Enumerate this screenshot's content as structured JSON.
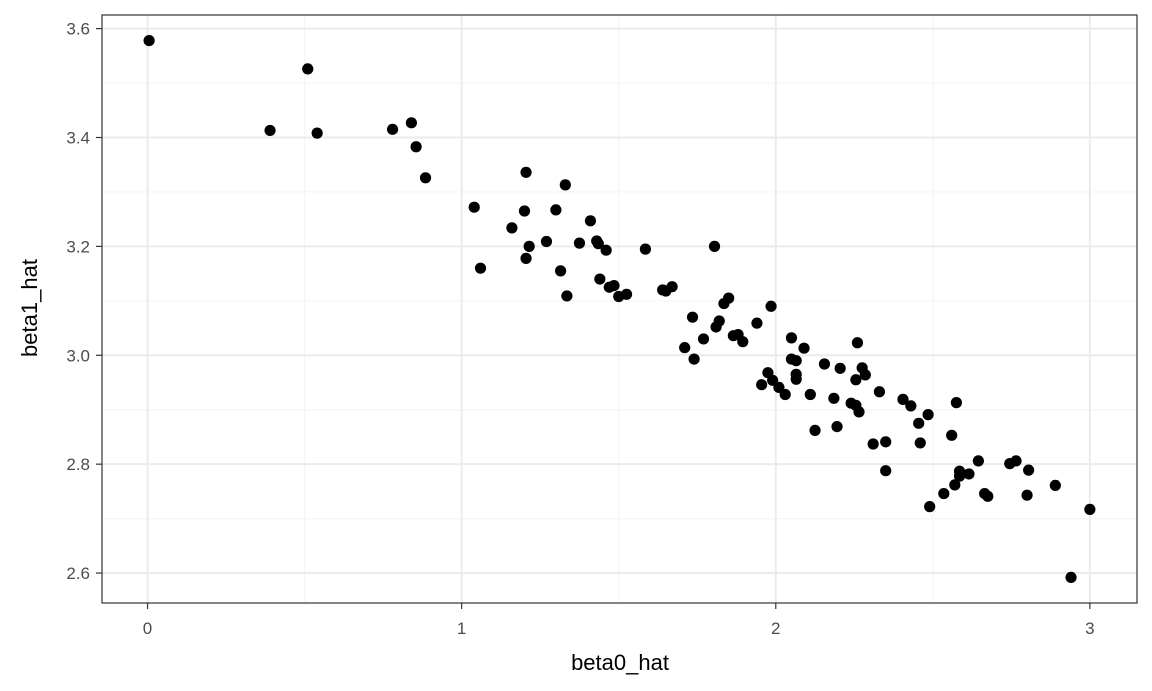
{
  "chart_data": {
    "type": "scatter",
    "xlabel": "beta0_hat",
    "ylabel": "beta1_hat",
    "xlim": [
      -0.145,
      3.15
    ],
    "ylim": [
      2.545,
      3.625
    ],
    "x_ticks": [
      0,
      1,
      2,
      3
    ],
    "x_tick_labels": [
      "0",
      "1",
      "2",
      "3"
    ],
    "y_ticks": [
      2.6,
      2.8,
      3.0,
      3.2,
      3.4,
      3.6
    ],
    "y_tick_labels": [
      "2.6",
      "2.8",
      "3.0",
      "3.2",
      "3.4",
      "3.6"
    ],
    "grid": true,
    "theme": "bw",
    "colors": {
      "points": "#000000",
      "grid_major": "#ebebeb",
      "grid_minor": "#f5f5f5",
      "panel_border": "#333333"
    },
    "points": [
      [
        0.005,
        3.578
      ],
      [
        0.39,
        3.413
      ],
      [
        0.51,
        3.526
      ],
      [
        0.54,
        3.408
      ],
      [
        0.78,
        3.415
      ],
      [
        0.84,
        3.427
      ],
      [
        0.855,
        3.383
      ],
      [
        0.885,
        3.326
      ],
      [
        1.04,
        3.272
      ],
      [
        1.06,
        3.16
      ],
      [
        1.16,
        3.234
      ],
      [
        1.2,
        3.265
      ],
      [
        1.205,
        3.336
      ],
      [
        1.205,
        3.178
      ],
      [
        1.215,
        3.2
      ],
      [
        1.27,
        3.209
      ],
      [
        1.3,
        3.267
      ],
      [
        1.315,
        3.155
      ],
      [
        1.33,
        3.313
      ],
      [
        1.335,
        3.109
      ],
      [
        1.375,
        3.206
      ],
      [
        1.41,
        3.247
      ],
      [
        1.43,
        3.21
      ],
      [
        1.435,
        3.205
      ],
      [
        1.44,
        3.14
      ],
      [
        1.46,
        3.193
      ],
      [
        1.47,
        3.125
      ],
      [
        1.485,
        3.128
      ],
      [
        1.5,
        3.108
      ],
      [
        1.525,
        3.112
      ],
      [
        1.585,
        3.195
      ],
      [
        1.64,
        3.12
      ],
      [
        1.65,
        3.118
      ],
      [
        1.67,
        3.126
      ],
      [
        1.71,
        3.014
      ],
      [
        1.735,
        3.07
      ],
      [
        1.74,
        2.993
      ],
      [
        1.77,
        3.03
      ],
      [
        1.805,
        3.2
      ],
      [
        1.81,
        3.052
      ],
      [
        1.82,
        3.063
      ],
      [
        1.835,
        3.095
      ],
      [
        1.85,
        3.105
      ],
      [
        1.865,
        3.036
      ],
      [
        1.88,
        3.038
      ],
      [
        1.895,
        3.025
      ],
      [
        1.94,
        3.059
      ],
      [
        1.955,
        2.946
      ],
      [
        1.975,
        2.968
      ],
      [
        1.985,
        3.09
      ],
      [
        1.99,
        2.954
      ],
      [
        2.01,
        2.941
      ],
      [
        2.03,
        2.928
      ],
      [
        2.05,
        3.032
      ],
      [
        2.05,
        2.993
      ],
      [
        2.065,
        2.99
      ],
      [
        2.065,
        2.965
      ],
      [
        2.065,
        2.956
      ],
      [
        2.09,
        3.013
      ],
      [
        2.11,
        2.928
      ],
      [
        2.125,
        2.862
      ],
      [
        2.155,
        2.984
      ],
      [
        2.185,
        2.921
      ],
      [
        2.195,
        2.869
      ],
      [
        2.205,
        2.976
      ],
      [
        2.24,
        2.912
      ],
      [
        2.255,
        2.955
      ],
      [
        2.255,
        2.908
      ],
      [
        2.26,
        3.023
      ],
      [
        2.265,
        2.896
      ],
      [
        2.275,
        2.977
      ],
      [
        2.285,
        2.964
      ],
      [
        2.31,
        2.837
      ],
      [
        2.33,
        2.933
      ],
      [
        2.35,
        2.841
      ],
      [
        2.35,
        2.788
      ],
      [
        2.405,
        2.919
      ],
      [
        2.43,
        2.907
      ],
      [
        2.455,
        2.875
      ],
      [
        2.46,
        2.839
      ],
      [
        2.485,
        2.891
      ],
      [
        2.49,
        2.722
      ],
      [
        2.535,
        2.746
      ],
      [
        2.56,
        2.853
      ],
      [
        2.57,
        2.762
      ],
      [
        2.575,
        2.913
      ],
      [
        2.585,
        2.787
      ],
      [
        2.585,
        2.778
      ],
      [
        2.615,
        2.782
      ],
      [
        2.645,
        2.806
      ],
      [
        2.665,
        2.746
      ],
      [
        2.675,
        2.741
      ],
      [
        2.745,
        2.801
      ],
      [
        2.765,
        2.806
      ],
      [
        2.8,
        2.743
      ],
      [
        2.805,
        2.789
      ],
      [
        2.89,
        2.761
      ],
      [
        2.94,
        2.592
      ],
      [
        3.0,
        2.717
      ]
    ]
  }
}
